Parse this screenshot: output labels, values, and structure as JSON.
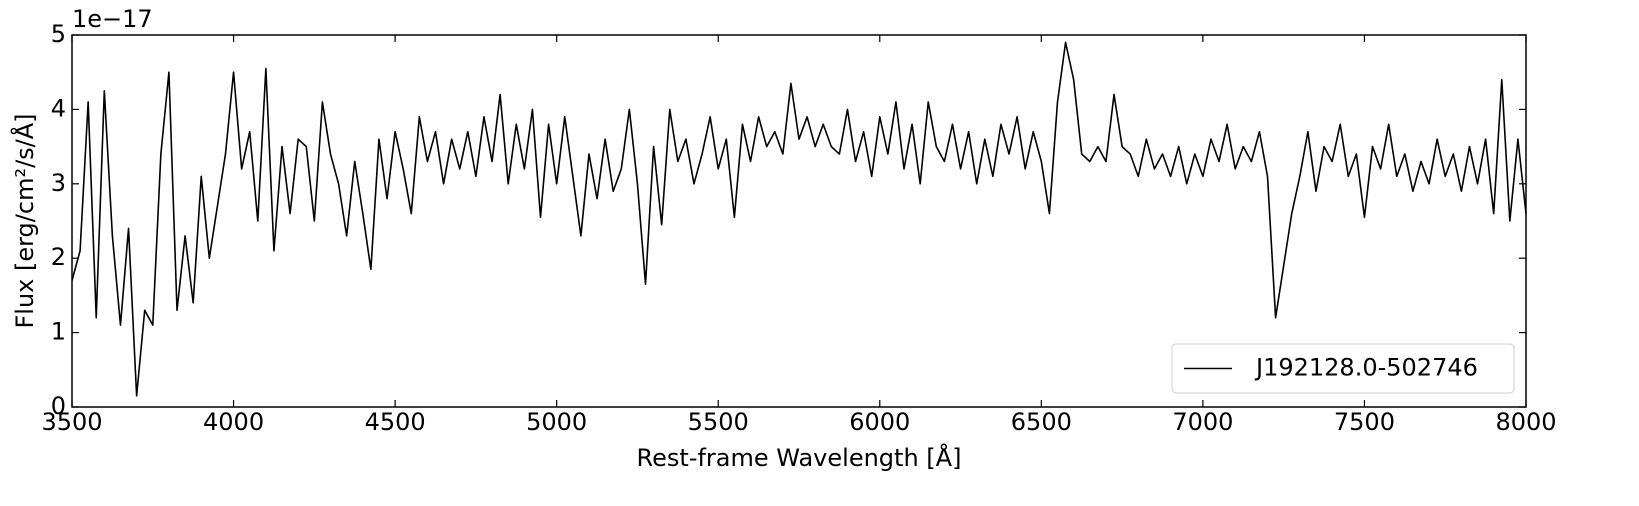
{
  "chart_data": {
    "type": "line",
    "xlabel": "Rest-frame Wavelength [Å]",
    "ylabel": "Flux [erg/cm²/s/Å]",
    "offset_text": "1e−17",
    "xlim": [
      3500,
      8000
    ],
    "ylim": [
      0,
      5
    ],
    "xticks": [
      3500,
      4000,
      4500,
      5000,
      5500,
      6000,
      6500,
      7000,
      7500,
      8000
    ],
    "yticks": [
      0,
      1,
      2,
      3,
      4,
      5
    ],
    "legend": "lower right",
    "x": [
      3500,
      3525,
      3550,
      3575,
      3600,
      3625,
      3650,
      3675,
      3700,
      3725,
      3750,
      3775,
      3800,
      3825,
      3850,
      3875,
      3900,
      3925,
      3950,
      3975,
      4000,
      4025,
      4050,
      4075,
      4100,
      4125,
      4150,
      4175,
      4200,
      4225,
      4250,
      4275,
      4300,
      4325,
      4350,
      4375,
      4400,
      4425,
      4450,
      4475,
      4500,
      4525,
      4550,
      4575,
      4600,
      4625,
      4650,
      4675,
      4700,
      4725,
      4750,
      4775,
      4800,
      4825,
      4850,
      4875,
      4900,
      4925,
      4950,
      4975,
      5000,
      5025,
      5050,
      5075,
      5100,
      5125,
      5150,
      5175,
      5200,
      5225,
      5250,
      5275,
      5300,
      5325,
      5350,
      5375,
      5400,
      5425,
      5450,
      5475,
      5500,
      5525,
      5550,
      5575,
      5600,
      5625,
      5650,
      5675,
      5700,
      5725,
      5750,
      5775,
      5800,
      5825,
      5850,
      5875,
      5900,
      5925,
      5950,
      5975,
      6000,
      6025,
      6050,
      6075,
      6100,
      6125,
      6150,
      6175,
      6200,
      6225,
      6250,
      6275,
      6300,
      6325,
      6350,
      6375,
      6400,
      6425,
      6450,
      6475,
      6500,
      6525,
      6550,
      6575,
      6600,
      6625,
      6650,
      6675,
      6700,
      6725,
      6750,
      6775,
      6800,
      6825,
      6850,
      6875,
      6900,
      6925,
      6950,
      6975,
      7000,
      7025,
      7050,
      7075,
      7100,
      7125,
      7150,
      7175,
      7200,
      7225,
      7250,
      7275,
      7300,
      7325,
      7350,
      7375,
      7400,
      7425,
      7450,
      7475,
      7500,
      7525,
      7550,
      7575,
      7600,
      7625,
      7650,
      7675,
      7700,
      7725,
      7750,
      7775,
      7800,
      7825,
      7850,
      7875,
      7900,
      7925,
      7950,
      7975,
      8000
    ],
    "series": [
      {
        "name": "J192128.0-502746",
        "color": "#000000",
        "values": [
          1.7,
          2.1,
          4.1,
          1.2,
          4.25,
          2.3,
          1.1,
          2.4,
          0.15,
          1.3,
          1.1,
          3.4,
          4.5,
          1.3,
          2.3,
          1.4,
          3.1,
          2.0,
          2.7,
          3.4,
          4.5,
          3.2,
          3.7,
          2.5,
          4.55,
          2.1,
          3.5,
          2.6,
          3.6,
          3.5,
          2.5,
          4.1,
          3.4,
          3.0,
          2.3,
          3.3,
          2.6,
          1.85,
          3.6,
          2.8,
          3.7,
          3.2,
          2.6,
          3.9,
          3.3,
          3.7,
          3.0,
          3.6,
          3.2,
          3.7,
          3.1,
          3.9,
          3.3,
          4.2,
          3.0,
          3.8,
          3.2,
          4.0,
          2.55,
          3.8,
          3.0,
          3.9,
          3.1,
          2.3,
          3.4,
          2.8,
          3.6,
          2.9,
          3.2,
          4.0,
          3.0,
          1.65,
          3.5,
          2.45,
          4.0,
          3.3,
          3.6,
          3.0,
          3.4,
          3.9,
          3.2,
          3.6,
          2.55,
          3.8,
          3.3,
          3.9,
          3.5,
          3.7,
          3.4,
          4.35,
          3.6,
          3.9,
          3.5,
          3.8,
          3.5,
          3.4,
          4.0,
          3.3,
          3.7,
          3.1,
          3.9,
          3.4,
          4.1,
          3.2,
          3.8,
          3.0,
          4.1,
          3.5,
          3.3,
          3.8,
          3.2,
          3.7,
          3.0,
          3.6,
          3.1,
          3.8,
          3.4,
          3.9,
          3.2,
          3.7,
          3.3,
          2.6,
          4.1,
          4.9,
          4.4,
          3.4,
          3.3,
          3.5,
          3.3,
          4.2,
          3.5,
          3.4,
          3.1,
          3.6,
          3.2,
          3.4,
          3.1,
          3.5,
          3.0,
          3.4,
          3.1,
          3.6,
          3.3,
          3.8,
          3.2,
          3.5,
          3.3,
          3.7,
          3.1,
          1.2,
          1.9,
          2.6,
          3.1,
          3.7,
          2.9,
          3.5,
          3.3,
          3.8,
          3.1,
          3.4,
          2.55,
          3.5,
          3.2,
          3.8,
          3.1,
          3.4,
          2.9,
          3.3,
          3.0,
          3.6,
          3.1,
          3.4,
          2.9,
          3.5,
          3.0,
          3.6,
          2.6,
          4.4,
          2.5,
          3.6,
          2.6
        ]
      }
    ]
  }
}
